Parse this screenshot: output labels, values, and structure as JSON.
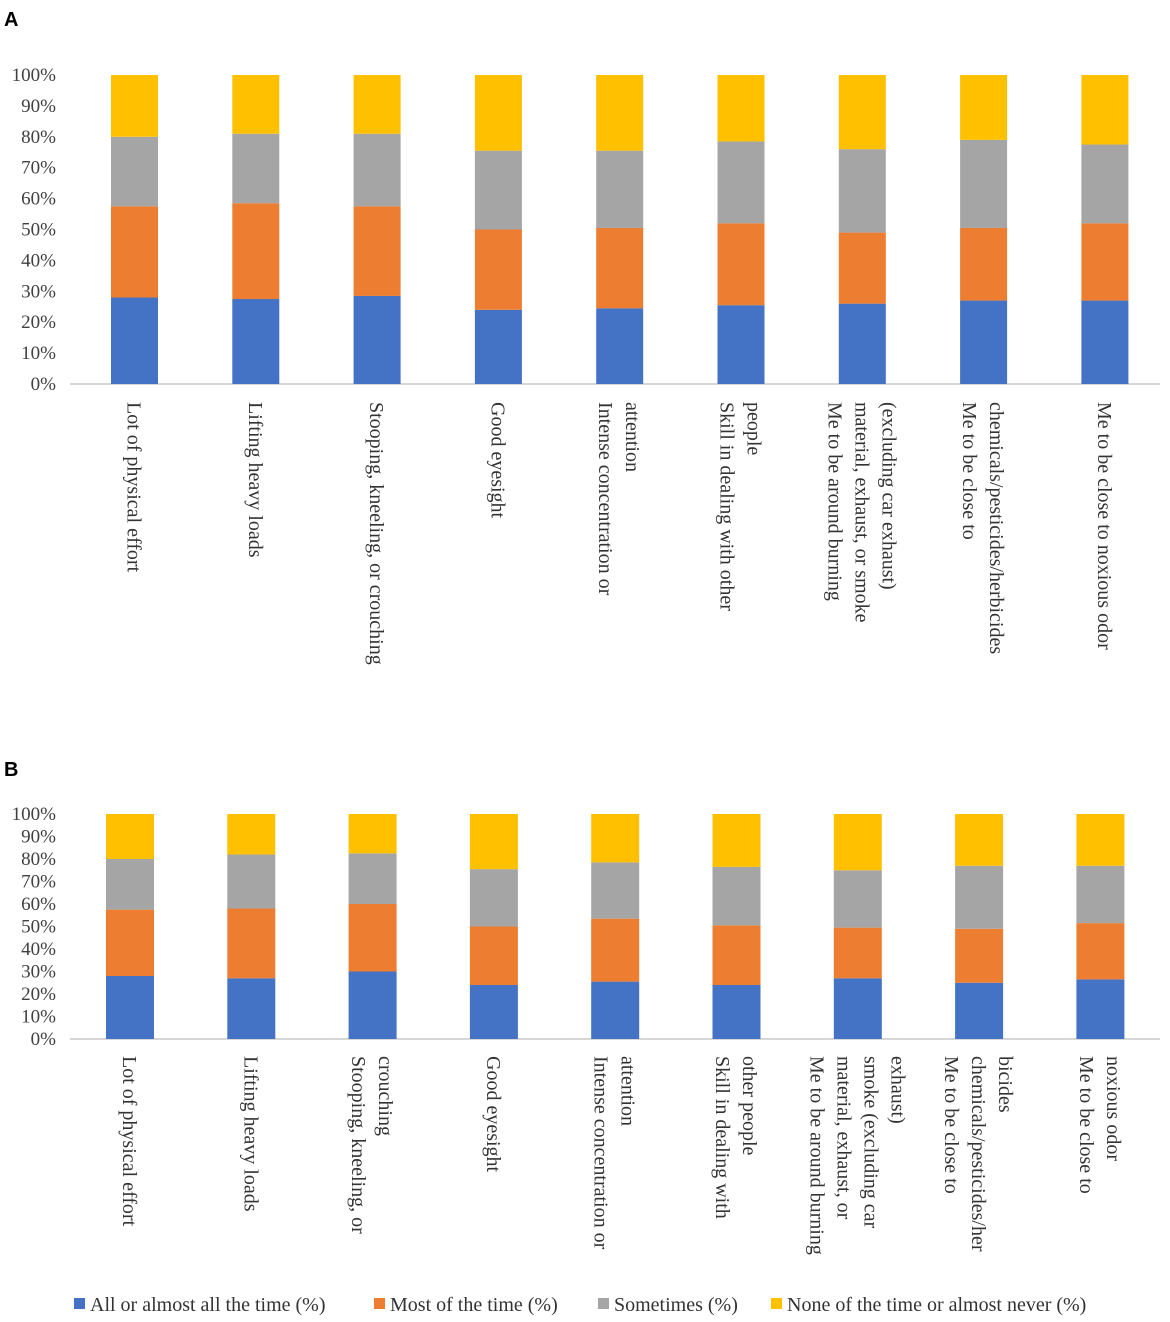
{
  "colors": {
    "all_time": "#4472C4",
    "most_time": "#ED7D31",
    "sometimes": "#A5A5A5",
    "none_time": "#FFC000"
  },
  "legend": [
    {
      "key": "all_time",
      "label": "All or almost all the time (%)"
    },
    {
      "key": "most_time",
      "label": "Most of the time (%)"
    },
    {
      "key": "sometimes",
      "label": "Sometimes (%)"
    },
    {
      "key": "none_time",
      "label": "None of the time or almost never (%)"
    }
  ],
  "chart_data": [
    {
      "panel": "A",
      "type": "bar",
      "stacked": true,
      "ylim": [
        0,
        100
      ],
      "yticks": [
        "0%",
        "10%",
        "20%",
        "30%",
        "40%",
        "50%",
        "60%",
        "70%",
        "80%",
        "90%",
        "100%"
      ],
      "categories": [
        [
          "Lot of physical effort"
        ],
        [
          "Lifting heavy loads"
        ],
        [
          "Stooping, kneeling, or crouching"
        ],
        [
          "Good eyesight"
        ],
        [
          "Intense concentration or",
          "attention"
        ],
        [
          "Skill in dealing with other",
          "people"
        ],
        [
          "Me to be around burning",
          "material, exhaust, or smoke",
          "(excluding car exhaust)"
        ],
        [
          "Me to be close to",
          "chemicals/pesticides/herbicides"
        ],
        [
          "Me to be close to noxious odor"
        ]
      ],
      "series": [
        {
          "name": "All or almost all the time (%)",
          "key": "all_time",
          "values": [
            28,
            27.5,
            28.5,
            24,
            24.5,
            25.5,
            26,
            27,
            27
          ]
        },
        {
          "name": "Most of the time (%)",
          "key": "most_time",
          "values": [
            29.5,
            31,
            29,
            26,
            26,
            26.5,
            23,
            23.5,
            25
          ]
        },
        {
          "name": "Sometimes (%)",
          "key": "sometimes",
          "values": [
            22.5,
            22.5,
            23.5,
            25.5,
            25,
            26.5,
            27,
            28.5,
            25.5
          ]
        },
        {
          "name": "None of the time or almost never (%)",
          "key": "none_time",
          "values": [
            20,
            19,
            19,
            24.5,
            24.5,
            21.5,
            24,
            21,
            22.5
          ]
        }
      ]
    },
    {
      "panel": "B",
      "type": "bar",
      "stacked": true,
      "ylim": [
        0,
        100
      ],
      "yticks": [
        "0%",
        "10%",
        "20%",
        "30%",
        "40%",
        "50%",
        "60%",
        "70%",
        "80%",
        "90%",
        "100%"
      ],
      "categories": [
        [
          "Lot of physical effort"
        ],
        [
          "Lifting heavy loads"
        ],
        [
          "Stooping, kneeling, or",
          "crouching"
        ],
        [
          "Good eyesight"
        ],
        [
          "Intense concentration or",
          "attention"
        ],
        [
          "Skill in dealing with",
          "other people"
        ],
        [
          "Me to be around burning",
          "material, exhaust, or",
          "smoke (excluding car",
          "exhaust)"
        ],
        [
          "Me to be close to",
          "chemicals/pesticides/her",
          "bicides"
        ],
        [
          "Me to be close to",
          "noxious odor"
        ]
      ],
      "series": [
        {
          "name": "All or almost all the time (%)",
          "key": "all_time",
          "values": [
            28,
            27,
            30,
            24,
            25.5,
            24,
            27,
            25,
            26.5
          ]
        },
        {
          "name": "Most of the time (%)",
          "key": "most_time",
          "values": [
            29.5,
            31,
            30,
            26,
            28,
            26.5,
            22.5,
            24,
            25
          ]
        },
        {
          "name": "Sometimes (%)",
          "key": "sometimes",
          "values": [
            22.5,
            24,
            22.5,
            25.5,
            25,
            26,
            25.5,
            28,
            25.5
          ]
        },
        {
          "name": "None of the time or almost never (%)",
          "key": "none_time",
          "values": [
            20,
            18,
            17.5,
            24.5,
            21.5,
            23.5,
            25,
            23,
            23
          ]
        }
      ]
    }
  ]
}
